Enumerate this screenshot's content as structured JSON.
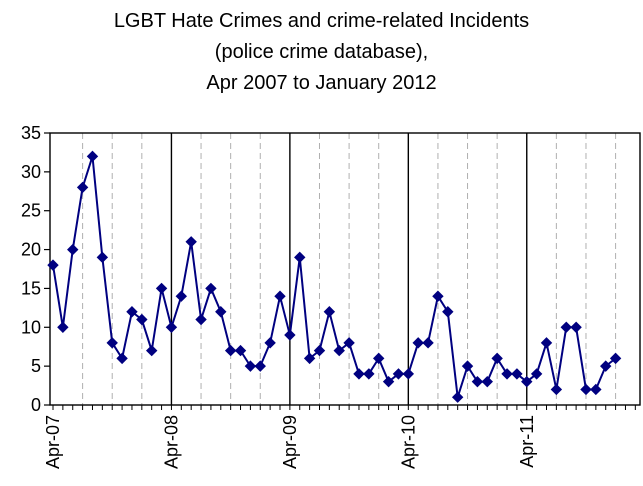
{
  "chart_data": {
    "type": "line",
    "title_lines": [
      "LGBT Hate Crimes and crime-related Incidents",
      "(police crime database),",
      "Apr 2007 to January 2012"
    ],
    "xlabel": "",
    "ylabel": "",
    "x_tick_labels": [
      "Apr-07",
      "Apr-08",
      "Apr-09",
      "Apr-10",
      "Apr-11"
    ],
    "x_range": [
      "Apr-07",
      "Jan-12"
    ],
    "y_ticks": [
      0,
      5,
      10,
      15,
      20,
      25,
      30,
      35
    ],
    "ylim": [
      0,
      35
    ],
    "grid": "solid vertical line at each April, dashed vertical lines for other months",
    "legend": "none",
    "series_color": "#000080",
    "marker": "diamond",
    "series": [
      {
        "values": [
          18,
          10,
          20,
          28,
          32,
          19,
          8,
          6,
          12,
          11,
          7,
          15,
          10,
          14,
          21,
          11,
          15,
          12,
          7,
          7,
          5,
          5,
          8,
          14,
          9,
          19,
          6,
          7,
          12,
          7,
          8,
          4,
          4,
          6,
          3,
          4,
          4,
          8,
          8,
          14,
          12,
          1,
          5,
          3,
          3,
          6,
          4,
          4,
          3,
          4,
          8,
          2,
          10,
          10,
          2,
          2,
          5,
          6
        ]
      }
    ]
  }
}
